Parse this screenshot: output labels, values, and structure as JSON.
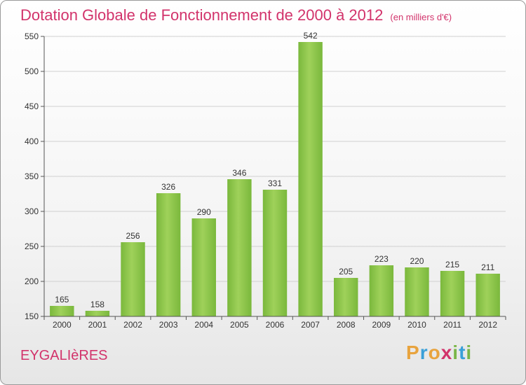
{
  "header": {
    "title": "Dotation Globale de Fonctionnement de 2000 à 2012",
    "subtitle": "(en milliers d'€)"
  },
  "footer": {
    "commune": "EYGALIèRES",
    "logo_letters": [
      "P",
      "r",
      "o",
      "x",
      "i",
      "t",
      "i"
    ],
    "logo_colors": [
      "#e8a33d",
      "#3aa0d8",
      "#e8a33d",
      "#d2336b",
      "#7ab648",
      "#3aa0d8",
      "#7ab648"
    ]
  },
  "chart_data": {
    "type": "bar",
    "categories": [
      "2000",
      "2001",
      "2002",
      "2003",
      "2004",
      "2005",
      "2006",
      "2007",
      "2008",
      "2009",
      "2010",
      "2011",
      "2012"
    ],
    "values": [
      165,
      158,
      256,
      326,
      290,
      346,
      331,
      542,
      205,
      223,
      220,
      215,
      211
    ],
    "ylim": [
      150,
      550
    ],
    "yticks": [
      150,
      200,
      250,
      300,
      350,
      400,
      450,
      500,
      550
    ],
    "grid": true,
    "bar_color": "#7ab83c",
    "bar_color_light": "#9fd15a"
  }
}
